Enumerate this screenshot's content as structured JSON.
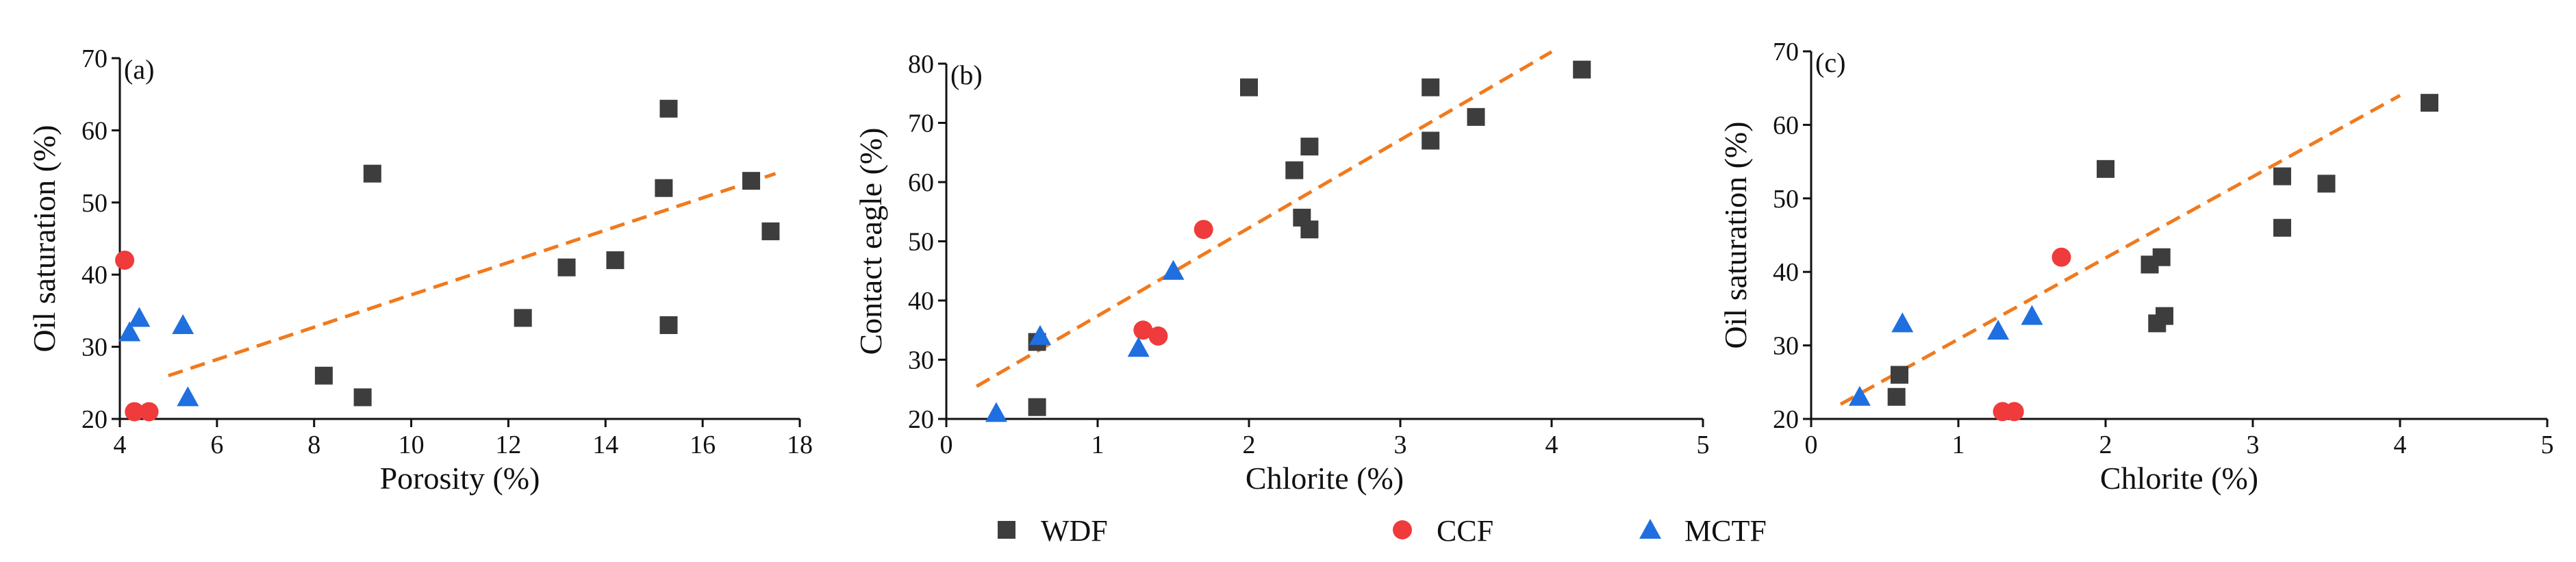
{
  "colors": {
    "wdf": "#3d3d3d",
    "ccf": "#ef3b3b",
    "mctf": "#1f6fe0",
    "trend": "#f07a1e",
    "axis": "#111111"
  },
  "legend": {
    "items": [
      {
        "key": "wdf",
        "label": "WDF",
        "marker": "square"
      },
      {
        "key": "ccf",
        "label": "CCF",
        "marker": "circle"
      },
      {
        "key": "mctf",
        "label": "MCTF",
        "marker": "triangle"
      }
    ]
  },
  "chart_data": [
    {
      "type": "scatter",
      "panel": "(a)",
      "xlabel": "Porosity (%)",
      "ylabel": "Oil saturation (%)",
      "xlim": [
        4,
        18
      ],
      "ylim": [
        20,
        70
      ],
      "xticks": [
        4,
        6,
        8,
        10,
        12,
        14,
        16,
        18
      ],
      "yticks": [
        20,
        30,
        40,
        50,
        60,
        70
      ],
      "series": [
        {
          "name": "WDF",
          "marker": "square",
          "x": [
            8.2,
            9.0,
            9.2,
            12.3,
            13.2,
            14.2,
            15.2,
            15.3,
            15.3,
            17.0,
            17.4
          ],
          "y": [
            26,
            23,
            54,
            34,
            41,
            42,
            52,
            63,
            33,
            53,
            46
          ]
        },
        {
          "name": "CCF",
          "marker": "circle",
          "x": [
            4.1,
            4.3,
            4.6
          ],
          "y": [
            42,
            21,
            21
          ]
        },
        {
          "name": "MCTF",
          "marker": "triangle",
          "x": [
            4.2,
            4.4,
            5.3,
            5.4
          ],
          "y": [
            32,
            34,
            33,
            23
          ]
        }
      ],
      "trendline": {
        "x": [
          5.0,
          17.5
        ],
        "y": [
          26,
          54
        ]
      }
    },
    {
      "type": "scatter",
      "panel": "(b)",
      "xlabel": "Chlorite (%)",
      "ylabel": "Contact eagle (%)",
      "xlim": [
        0,
        5
      ],
      "ylim": [
        20,
        80
      ],
      "xticks": [
        0,
        1,
        2,
        3,
        4,
        5
      ],
      "yticks": [
        20,
        30,
        40,
        50,
        60,
        70,
        80
      ],
      "series": [
        {
          "name": "WDF",
          "marker": "square",
          "x": [
            0.6,
            0.6,
            2.0,
            2.3,
            2.35,
            2.4,
            2.4,
            3.2,
            3.2,
            3.5,
            4.2
          ],
          "y": [
            33,
            22,
            76,
            62,
            54,
            52,
            66,
            76,
            67,
            71,
            79
          ]
        },
        {
          "name": "CCF",
          "marker": "circle",
          "x": [
            1.3,
            1.4,
            1.7
          ],
          "y": [
            35,
            34,
            52
          ]
        },
        {
          "name": "MCTF",
          "marker": "triangle",
          "x": [
            0.33,
            0.62,
            1.27,
            1.5
          ],
          "y": [
            21,
            34,
            32,
            45
          ]
        }
      ],
      "trendline": {
        "x": [
          0.2,
          4.0
        ],
        "y": [
          25.5,
          82
        ]
      }
    },
    {
      "type": "scatter",
      "panel": "(c)",
      "xlabel": "Chlorite (%)",
      "ylabel": "Oil saturation (%)",
      "xlim": [
        0,
        5
      ],
      "ylim": [
        20,
        70
      ],
      "xticks": [
        0,
        1,
        2,
        3,
        4,
        5
      ],
      "yticks": [
        20,
        30,
        40,
        50,
        60,
        70
      ],
      "series": [
        {
          "name": "WDF",
          "marker": "square",
          "x": [
            0.58,
            0.6,
            2.0,
            2.3,
            2.35,
            2.38,
            2.4,
            3.2,
            3.2,
            3.5,
            4.2
          ],
          "y": [
            23,
            26,
            54,
            41,
            33,
            42,
            34,
            53,
            46,
            52,
            63
          ]
        },
        {
          "name": "CCF",
          "marker": "circle",
          "x": [
            1.3,
            1.38,
            1.7
          ],
          "y": [
            21,
            21,
            42
          ]
        },
        {
          "name": "MCTF",
          "marker": "triangle",
          "x": [
            0.33,
            0.62,
            1.27,
            1.5
          ],
          "y": [
            23,
            33,
            32,
            34
          ]
        }
      ],
      "trendline": {
        "x": [
          0.2,
          4.0
        ],
        "y": [
          22,
          64
        ]
      }
    }
  ]
}
